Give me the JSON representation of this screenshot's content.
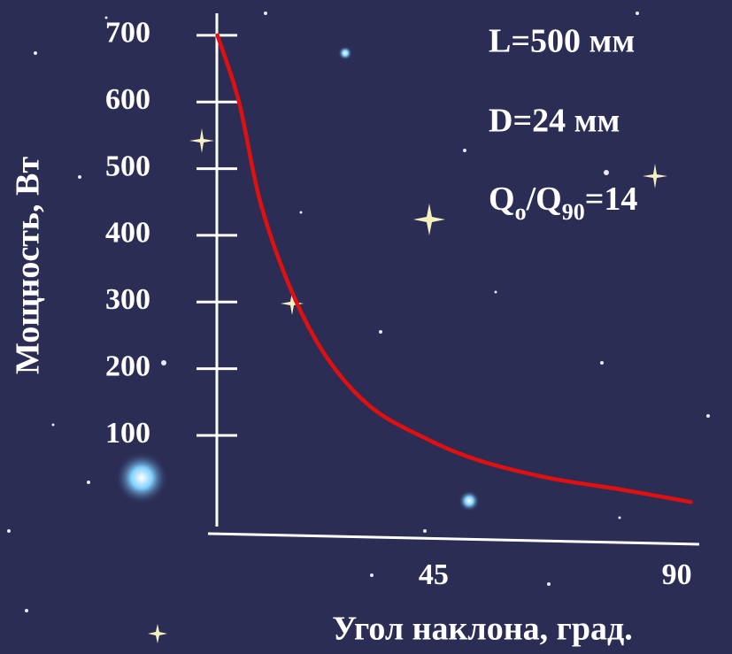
{
  "chart_data": {
    "type": "line",
    "xlabel": "Угол наклона, град.",
    "ylabel": "Мощность, Вт",
    "annotations": [
      "L=500 мм",
      "D=24 мм"
    ],
    "ratio_annotation": [
      "Q",
      "o",
      "/Q",
      "90",
      "=14"
    ],
    "x": [
      5,
      9,
      13,
      18.8,
      25.4,
      33.5,
      43.4,
      53.2,
      66.4,
      79.5,
      92.6
    ],
    "series": [
      {
        "color": "#e01010",
        "values": [
          700,
          600,
          448,
          315,
          215,
          142,
          96,
          63,
          36,
          19,
          0
        ]
      }
    ],
    "xlim": [
      4,
      93
    ],
    "xticks": [
      45,
      90
    ],
    "ylim": [
      -50,
      733
    ],
    "yticks": [
      100,
      200,
      300,
      400,
      500,
      600,
      700
    ]
  }
}
